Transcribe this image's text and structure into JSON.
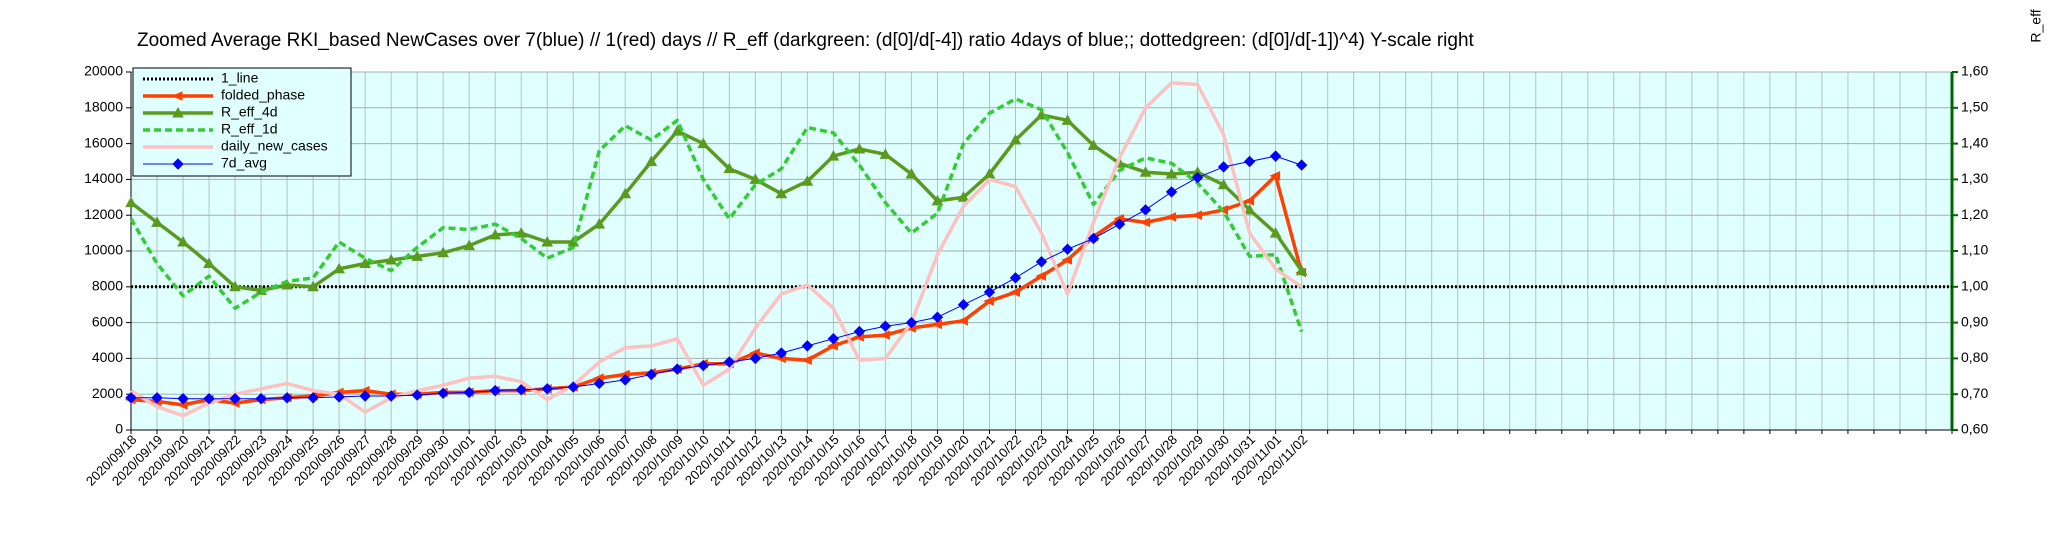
{
  "chart_data": {
    "type": "line",
    "title": "Zoomed Average RKI_based NewCases over 7(blue) // 1(red) days //  R_eff (darkgreen: (d[0]/d[-4]) ratio 4days of blue;; dottedgreen: (d[0]/d[-1])^4) Y-scale right",
    "y2label": "R_eff",
    "categories": [
      "2020/09/18",
      "2020/09/19",
      "2020/09/20",
      "2020/09/21",
      "2020/09/22",
      "2020/09/23",
      "2020/09/24",
      "2020/09/25",
      "2020/09/26",
      "2020/09/27",
      "2020/09/28",
      "2020/09/29",
      "2020/09/30",
      "2020/10/01",
      "2020/10/02",
      "2020/10/03",
      "2020/10/04",
      "2020/10/05",
      "2020/10/06",
      "2020/10/07",
      "2020/10/08",
      "2020/10/09",
      "2020/10/10",
      "2020/10/11",
      "2020/10/12",
      "2020/10/13",
      "2020/10/14",
      "2020/10/15",
      "2020/10/16",
      "2020/10/17",
      "2020/10/18",
      "2020/10/19",
      "2020/10/20",
      "2020/10/21",
      "2020/10/22",
      "2020/10/23",
      "2020/10/24",
      "2020/10/25",
      "2020/10/26",
      "2020/10/27",
      "2020/10/28",
      "2020/10/29",
      "2020/10/30",
      "2020/10/31",
      "2020/11/01",
      "2020/11/02",
      null,
      null,
      null,
      null,
      null,
      null,
      null,
      null,
      null,
      null,
      null,
      null,
      null,
      null,
      null,
      null,
      null,
      null,
      null,
      null,
      null,
      null,
      null,
      null,
      null
    ],
    "series": [
      {
        "name": "1_line",
        "color": "#000000",
        "style": "dotted",
        "axis": "y2",
        "values": [
          1,
          1,
          1,
          1,
          1,
          1,
          1,
          1,
          1,
          1,
          1,
          1,
          1,
          1,
          1,
          1,
          1,
          1,
          1,
          1,
          1,
          1,
          1,
          1,
          1,
          1,
          1,
          1,
          1,
          1,
          1,
          1,
          1,
          1,
          1,
          1,
          1,
          1,
          1,
          1,
          1,
          1,
          1,
          1,
          1,
          1,
          1,
          1,
          1,
          1,
          1,
          1,
          1,
          1,
          1,
          1,
          1,
          1,
          1,
          1,
          1,
          1,
          1,
          1,
          1,
          1,
          1,
          1,
          1,
          1,
          1
        ]
      },
      {
        "name": "folded_phase",
        "color": "#ff4000",
        "style": "solid",
        "marker": "triangle-left",
        "values": [
          1700,
          1600,
          1400,
          1700,
          1500,
          1700,
          1800,
          1900,
          2100,
          2200,
          2000,
          2000,
          2100,
          2100,
          2200,
          2200,
          2300,
          2400,
          2900,
          3100,
          3200,
          3400,
          3700,
          3700,
          4300,
          4000,
          3900,
          4700,
          5200,
          5300,
          5700,
          5900,
          6100,
          7200,
          7700,
          8600,
          9500,
          10800,
          11800,
          11600,
          11900,
          12000,
          12300,
          12800,
          14200,
          8800,
          null,
          null,
          null,
          null,
          null,
          null,
          null,
          null,
          null,
          null,
          null,
          null,
          null,
          null,
          null,
          null,
          null,
          null,
          null,
          null,
          null,
          null,
          null,
          null,
          null
        ]
      },
      {
        "name": "R_eff_4d",
        "color": "#5a9a1e",
        "style": "solid",
        "marker": "triangle",
        "axis": "y2",
        "values": [
          1.235,
          1.18,
          1.125,
          1.065,
          1.0,
          0.99,
          1.005,
          1.0,
          1.05,
          1.065,
          1.075,
          1.085,
          1.095,
          1.115,
          1.145,
          1.15,
          1.125,
          1.125,
          1.175,
          1.26,
          1.35,
          1.435,
          1.4,
          1.33,
          1.3,
          1.26,
          1.295,
          1.365,
          1.385,
          1.37,
          1.315,
          1.24,
          1.25,
          1.315,
          1.41,
          1.48,
          1.465,
          1.395,
          1.345,
          1.32,
          1.315,
          1.32,
          1.285,
          1.215,
          1.15,
          1.045,
          null,
          null,
          null,
          null,
          null,
          null,
          null,
          null,
          null,
          null,
          null,
          null,
          null,
          null,
          null,
          null,
          null,
          null,
          null,
          null,
          null,
          null,
          null,
          null,
          null
        ]
      },
      {
        "name": "R_eff_1d",
        "color": "#33cc33",
        "style": "dashed",
        "axis": "y2",
        "values": [
          1.19,
          1.065,
          0.975,
          1.03,
          0.94,
          0.985,
          1.015,
          1.025,
          1.125,
          1.08,
          1.045,
          1.11,
          1.165,
          1.16,
          1.175,
          1.135,
          1.08,
          1.11,
          1.38,
          1.45,
          1.41,
          1.465,
          1.3,
          1.19,
          1.285,
          1.33,
          1.445,
          1.43,
          1.34,
          1.235,
          1.15,
          1.205,
          1.4,
          1.485,
          1.525,
          1.495,
          1.375,
          1.23,
          1.325,
          1.36,
          1.345,
          1.29,
          1.21,
          1.085,
          1.09,
          0.875,
          null,
          null,
          null,
          null,
          null,
          null,
          null,
          null,
          null,
          null,
          null,
          null,
          null,
          null,
          null,
          null,
          null,
          null,
          null,
          null,
          null,
          null,
          null,
          null,
          null
        ]
      },
      {
        "name": "daily_new_cases",
        "color": "#ffc0c0",
        "style": "solid",
        "values": [
          2200,
          1300,
          800,
          1500,
          2000,
          2300,
          2600,
          2200,
          2000,
          1000,
          1800,
          2200,
          2500,
          2900,
          3000,
          2700,
          1700,
          2500,
          3800,
          4600,
          4700,
          5100,
          2500,
          3400,
          5700,
          7600,
          8100,
          6800,
          3900,
          4000,
          6000,
          9800,
          12500,
          14000,
          13600,
          11000,
          7600,
          11600,
          15200,
          18000,
          19400,
          19300,
          16500,
          11000,
          9000,
          8000,
          null,
          null,
          null,
          null,
          null,
          null,
          null,
          null,
          null,
          null,
          null,
          null,
          null,
          null,
          null,
          null,
          null,
          null,
          null,
          null,
          null,
          null,
          null,
          null,
          null
        ]
      },
      {
        "name": "7d_avg",
        "color": "#0000ff",
        "style": "thin",
        "marker": "diamond",
        "values": [
          1800,
          1800,
          1750,
          1750,
          1750,
          1750,
          1800,
          1800,
          1850,
          1900,
          1900,
          1950,
          2050,
          2100,
          2200,
          2250,
          2300,
          2400,
          2600,
          2800,
          3100,
          3400,
          3600,
          3800,
          4000,
          4300,
          4700,
          5100,
          5500,
          5800,
          6000,
          6300,
          7000,
          7700,
          8500,
          9400,
          10100,
          10700,
          11500,
          12300,
          13300,
          14100,
          14700,
          15000,
          15300,
          14800,
          null,
          null,
          null,
          null,
          null,
          null,
          null,
          null,
          null,
          null,
          null,
          null,
          null,
          null,
          null,
          null,
          null,
          null,
          null,
          null,
          null,
          null,
          null,
          null,
          null
        ]
      }
    ],
    "ylim": [
      0,
      20000
    ],
    "yticks": [
      0,
      2000,
      4000,
      6000,
      8000,
      10000,
      12000,
      14000,
      16000,
      18000,
      20000
    ],
    "y2lim": [
      0.6,
      1.6
    ],
    "y2ticks": [
      {
        "value": 0.6,
        "label": "0,60"
      },
      {
        "value": 0.7,
        "label": "0,70"
      },
      {
        "value": 0.8,
        "label": "0,80"
      },
      {
        "value": 0.9,
        "label": "0,90"
      },
      {
        "value": 1.0,
        "label": "1,00"
      },
      {
        "value": 1.1,
        "label": "1,10"
      },
      {
        "value": 1.2,
        "label": "1,20"
      },
      {
        "value": 1.3,
        "label": "1,30"
      },
      {
        "value": 1.4,
        "label": "1,40"
      },
      {
        "value": 1.5,
        "label": "1,50"
      },
      {
        "value": 1.6,
        "label": "1,60"
      }
    ],
    "grid": true,
    "legend": "upper left",
    "background": "#e0ffff",
    "y2color": "#006600"
  }
}
